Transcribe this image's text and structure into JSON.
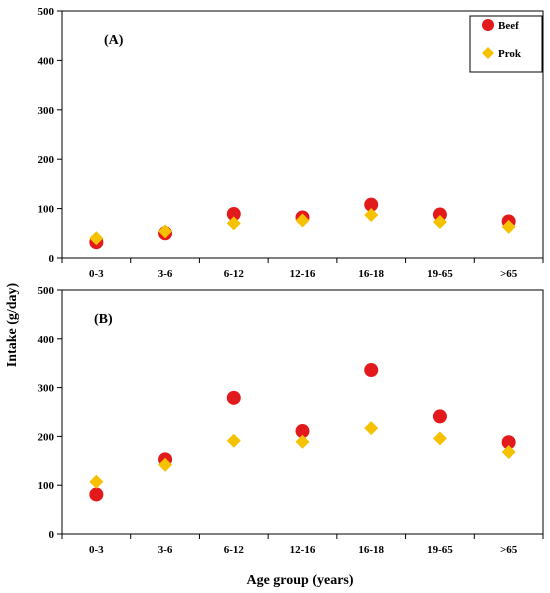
{
  "colors": {
    "beef": "#e31a1c",
    "pork": "#f6c100",
    "axis": "#000000",
    "background": "#ffffff"
  },
  "labels": {
    "ylabel": "Intake (g/day)",
    "xlabel": "Age group (years)"
  },
  "chart_data": [
    {
      "type": "scatter",
      "panel_label": "(A)",
      "categories": [
        "0-3",
        "3-6",
        "6-12",
        "12-16",
        "16-18",
        "19-65",
        ">65"
      ],
      "ylim": [
        0,
        500
      ],
      "yticks": [
        0,
        100,
        200,
        300,
        400,
        500
      ],
      "legend": {
        "placement": "top-right",
        "entries": [
          "Beef",
          "Prok"
        ]
      },
      "grid": false,
      "series": [
        {
          "name": "Beef",
          "marker": "circle",
          "color": "#e31a1c",
          "values": [
            32,
            50,
            89,
            82,
            108,
            88,
            74
          ]
        },
        {
          "name": "Prok",
          "marker": "diamond",
          "color": "#f6c100",
          "values": [
            40,
            54,
            70,
            76,
            87,
            73,
            63
          ]
        }
      ]
    },
    {
      "type": "scatter",
      "panel_label": "(B)",
      "categories": [
        "0-3",
        "3-6",
        "6-12",
        "12-16",
        "16-18",
        "19-65",
        ">65"
      ],
      "ylim": [
        0,
        500
      ],
      "yticks": [
        0,
        100,
        200,
        300,
        400,
        500
      ],
      "grid": false,
      "series": [
        {
          "name": "Beef",
          "marker": "circle",
          "color": "#e31a1c",
          "values": [
            81,
            153,
            279,
            211,
            336,
            241,
            188
          ]
        },
        {
          "name": "Prok",
          "marker": "diamond",
          "color": "#f6c100",
          "values": [
            107,
            142,
            191,
            189,
            217,
            196,
            168
          ]
        }
      ]
    }
  ]
}
